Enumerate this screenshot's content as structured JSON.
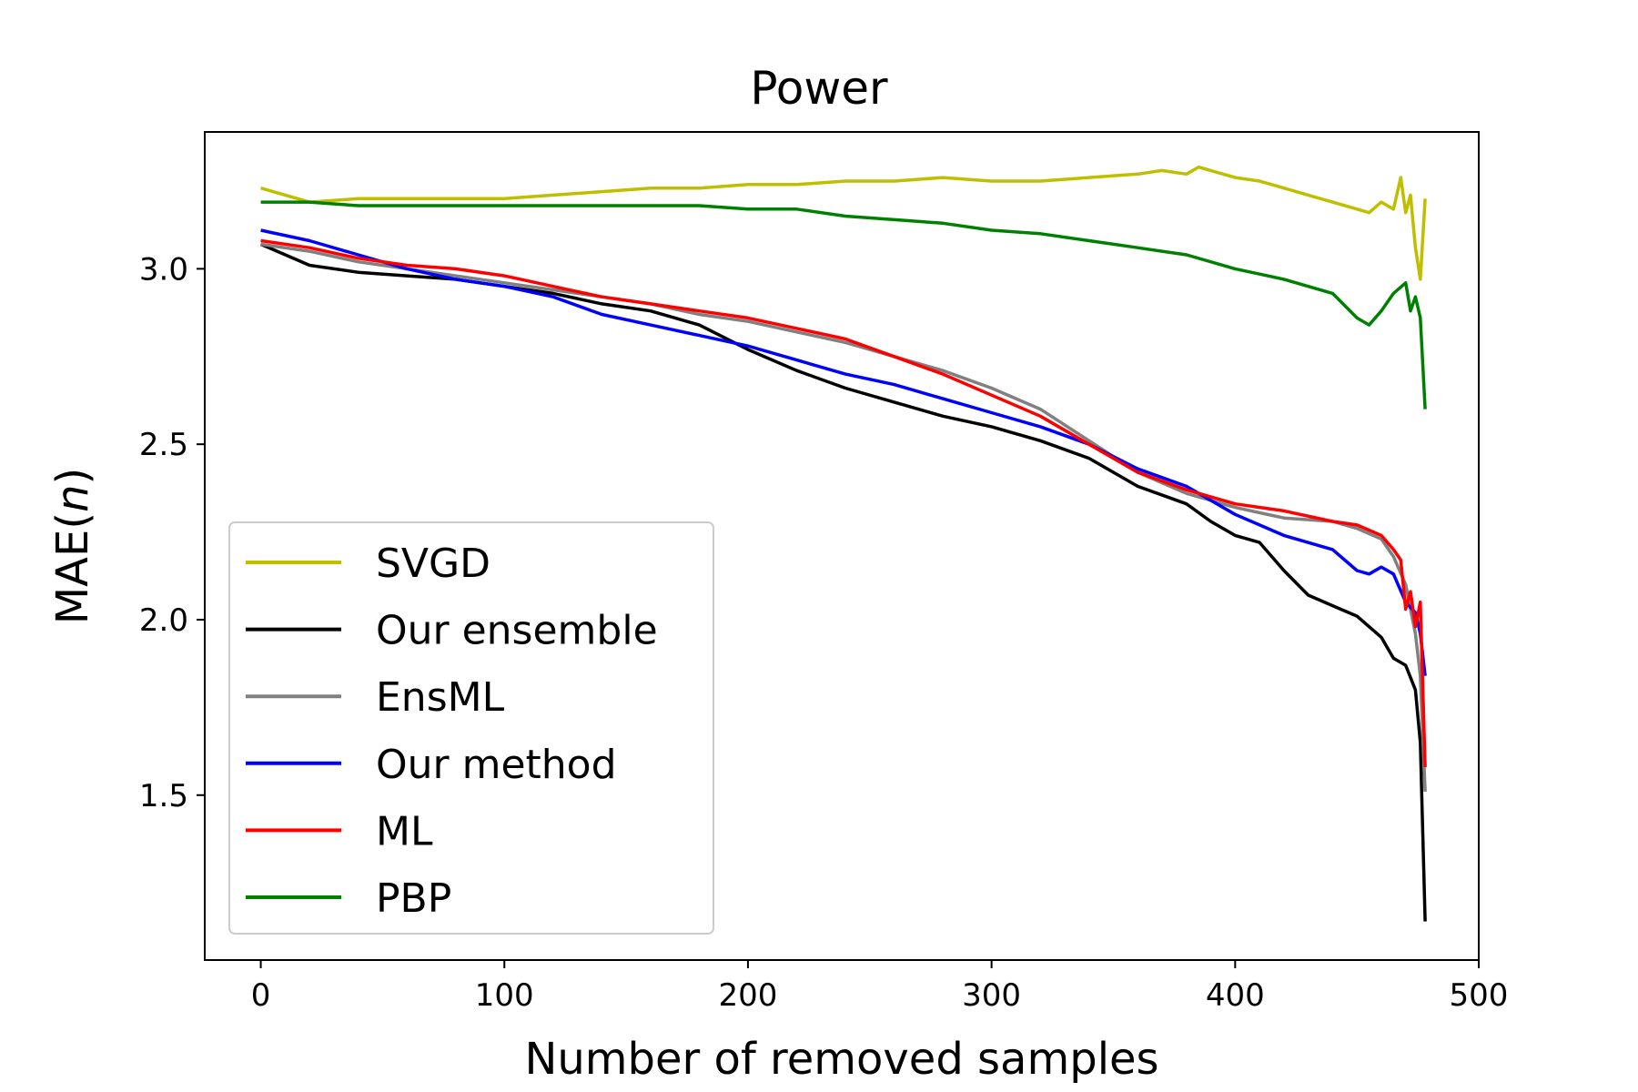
{
  "chart_data": {
    "type": "line",
    "title": "Power",
    "xlabel": "Number of removed samples",
    "ylabel_prefix": "MAE(",
    "ylabel_var": "n",
    "ylabel_suffix": ")",
    "xlim": [
      -23,
      500
    ],
    "ylim": [
      1.03,
      3.39
    ],
    "xticks": [
      0,
      100,
      200,
      300,
      400,
      500
    ],
    "yticks": [
      1.5,
      2.0,
      2.5,
      3.0
    ],
    "xtick_labels": [
      "0",
      "100",
      "200",
      "300",
      "400",
      "500"
    ],
    "ytick_labels": [
      "1.5",
      "2.0",
      "2.5",
      "3.0"
    ],
    "legend_position": "lower-left",
    "series": [
      {
        "name": "SVGD",
        "color": "#bfbf00",
        "x": [
          0,
          20,
          40,
          60,
          80,
          100,
          120,
          140,
          160,
          180,
          200,
          220,
          240,
          260,
          280,
          300,
          320,
          340,
          360,
          370,
          380,
          385,
          390,
          400,
          410,
          420,
          430,
          440,
          450,
          455,
          460,
          465,
          468,
          470,
          472,
          474,
          476,
          478
        ],
        "values": [
          3.23,
          3.19,
          3.2,
          3.2,
          3.2,
          3.2,
          3.21,
          3.22,
          3.23,
          3.23,
          3.24,
          3.24,
          3.25,
          3.25,
          3.26,
          3.25,
          3.25,
          3.26,
          3.27,
          3.28,
          3.27,
          3.29,
          3.28,
          3.26,
          3.25,
          3.23,
          3.21,
          3.19,
          3.17,
          3.16,
          3.19,
          3.17,
          3.26,
          3.16,
          3.21,
          3.06,
          2.97,
          3.2
        ]
      },
      {
        "name": "Our ensemble",
        "color": "#000000",
        "x": [
          0,
          20,
          40,
          60,
          80,
          100,
          120,
          140,
          160,
          180,
          200,
          220,
          240,
          260,
          280,
          300,
          320,
          340,
          360,
          380,
          390,
          400,
          410,
          420,
          430,
          440,
          450,
          460,
          465,
          470,
          474,
          476,
          478
        ],
        "values": [
          3.07,
          3.01,
          2.99,
          2.98,
          2.97,
          2.95,
          2.93,
          2.9,
          2.88,
          2.84,
          2.77,
          2.71,
          2.66,
          2.62,
          2.58,
          2.55,
          2.51,
          2.46,
          2.38,
          2.33,
          2.28,
          2.24,
          2.22,
          2.14,
          2.07,
          2.04,
          2.01,
          1.95,
          1.89,
          1.87,
          1.8,
          1.65,
          1.14
        ]
      },
      {
        "name": "EnsML",
        "color": "#808080",
        "x": [
          0,
          20,
          40,
          60,
          80,
          100,
          120,
          140,
          160,
          180,
          200,
          220,
          240,
          260,
          280,
          300,
          320,
          340,
          360,
          380,
          400,
          420,
          440,
          450,
          460,
          465,
          470,
          474,
          476,
          478
        ],
        "values": [
          3.07,
          3.05,
          3.02,
          3.0,
          2.98,
          2.96,
          2.94,
          2.92,
          2.9,
          2.87,
          2.85,
          2.82,
          2.79,
          2.75,
          2.71,
          2.66,
          2.6,
          2.51,
          2.42,
          2.36,
          2.32,
          2.29,
          2.28,
          2.26,
          2.23,
          2.18,
          2.1,
          1.96,
          1.84,
          1.51
        ]
      },
      {
        "name": "Our method",
        "color": "#0000ff",
        "x": [
          0,
          20,
          40,
          60,
          80,
          100,
          120,
          140,
          160,
          180,
          200,
          220,
          240,
          260,
          280,
          300,
          320,
          340,
          360,
          380,
          400,
          420,
          440,
          450,
          455,
          460,
          465,
          470,
          474,
          476,
          478
        ],
        "values": [
          3.11,
          3.08,
          3.04,
          3.0,
          2.97,
          2.95,
          2.92,
          2.87,
          2.84,
          2.81,
          2.78,
          2.74,
          2.7,
          2.67,
          2.63,
          2.59,
          2.55,
          2.5,
          2.43,
          2.38,
          2.3,
          2.24,
          2.2,
          2.14,
          2.13,
          2.15,
          2.13,
          2.05,
          2.02,
          1.96,
          1.84
        ]
      },
      {
        "name": "ML",
        "color": "#ff0000",
        "x": [
          0,
          20,
          40,
          60,
          80,
          100,
          120,
          140,
          160,
          180,
          200,
          220,
          240,
          260,
          280,
          300,
          320,
          340,
          360,
          380,
          400,
          420,
          440,
          450,
          460,
          465,
          468,
          470,
          472,
          474,
          476,
          478
        ],
        "values": [
          3.08,
          3.06,
          3.03,
          3.01,
          3.0,
          2.98,
          2.95,
          2.92,
          2.9,
          2.88,
          2.86,
          2.83,
          2.8,
          2.75,
          2.7,
          2.64,
          2.58,
          2.5,
          2.42,
          2.37,
          2.33,
          2.31,
          2.28,
          2.27,
          2.24,
          2.2,
          2.17,
          2.03,
          2.08,
          1.98,
          2.05,
          1.58
        ]
      },
      {
        "name": "PBP",
        "color": "#008000",
        "x": [
          0,
          20,
          40,
          60,
          80,
          100,
          120,
          140,
          160,
          180,
          200,
          220,
          240,
          260,
          280,
          300,
          320,
          340,
          360,
          380,
          400,
          420,
          440,
          450,
          455,
          460,
          465,
          470,
          472,
          474,
          476,
          478
        ],
        "values": [
          3.19,
          3.19,
          3.18,
          3.18,
          3.18,
          3.18,
          3.18,
          3.18,
          3.18,
          3.18,
          3.17,
          3.17,
          3.15,
          3.14,
          3.13,
          3.11,
          3.1,
          3.08,
          3.06,
          3.04,
          3.0,
          2.97,
          2.93,
          2.86,
          2.84,
          2.88,
          2.93,
          2.96,
          2.88,
          2.92,
          2.86,
          2.6
        ]
      }
    ]
  }
}
